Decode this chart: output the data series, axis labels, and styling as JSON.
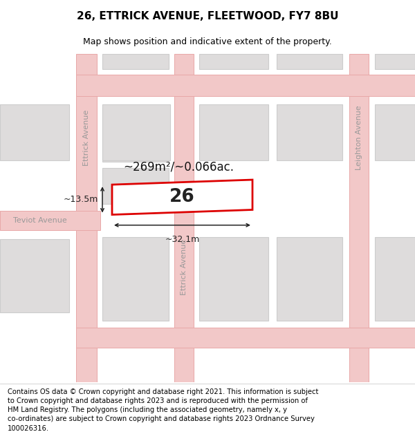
{
  "title": "26, ETTRICK AVENUE, FLEETWOOD, FY7 8BU",
  "subtitle": "Map shows position and indicative extent of the property.",
  "footer": "Contains OS data © Crown copyright and database right 2021. This information is subject\nto Crown copyright and database rights 2023 and is reproduced with the permission of\nHM Land Registry. The polygons (including the associated geometry, namely x, y\nco-ordinates) are subject to Crown copyright and database rights 2023 Ordnance Survey\n100026316.",
  "map_bg": "#f7f6f6",
  "road_fill": "#f2c8c8",
  "road_edge": "#e8a8a8",
  "bld_fill": "#dedcdc",
  "bld_edge": "#cccccc",
  "highlight_color": "#dd0000",
  "measure_color": "#222222",
  "label_color": "#999999",
  "area_label": "~269m²/~0.066ac.",
  "number_label": "26",
  "dim_width": "~32.1m",
  "dim_height": "~13.5m",
  "title_fontsize": 11,
  "subtitle_fontsize": 9,
  "footer_fontsize": 7.2
}
